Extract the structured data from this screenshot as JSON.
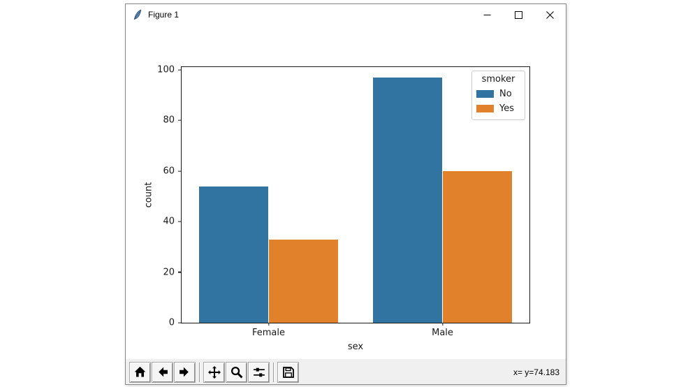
{
  "window": {
    "title": "Figure 1",
    "icon": "tk-feather-icon",
    "controls": [
      {
        "name": "minimize"
      },
      {
        "name": "maximize"
      },
      {
        "name": "close"
      }
    ]
  },
  "chart_data": {
    "type": "bar",
    "title": "",
    "categories": [
      "Female",
      "Male"
    ],
    "series": [
      {
        "name": "No",
        "color": "#3274A1",
        "values": [
          54,
          97
        ]
      },
      {
        "name": "Yes",
        "color": "#E1812C",
        "values": [
          33,
          60
        ]
      }
    ],
    "xlabel": "sex",
    "ylabel": "count",
    "yticks": [
      0,
      20,
      40,
      60,
      80,
      100
    ],
    "ylim": [
      0,
      101.1
    ],
    "grid": false,
    "legend": {
      "title": "smoker",
      "position": "upper right",
      "entries": [
        "No",
        "Yes"
      ]
    },
    "group_width": 0.8
  },
  "toolbar": {
    "buttons": [
      {
        "name": "home"
      },
      {
        "name": "back"
      },
      {
        "name": "forward"
      },
      {
        "name": "pan"
      },
      {
        "name": "zoom"
      },
      {
        "name": "configure-subplots"
      },
      {
        "name": "save"
      }
    ],
    "status": "x= y=74.183"
  },
  "colors": {
    "bar_no": "#3274A1",
    "bar_yes": "#E1812C",
    "toolbar_bg": "#F0F0F0",
    "titlebar_bg": "#FFFFFF",
    "spine": "#1A1A1A"
  }
}
